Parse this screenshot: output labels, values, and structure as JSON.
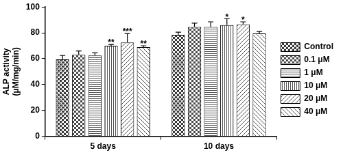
{
  "chart_data": {
    "type": "bar",
    "categories": [
      "5 days",
      "10 days"
    ],
    "ylabel": [
      "ALP activity",
      "(μM/mg/min)"
    ],
    "ylim": [
      0,
      100
    ],
    "yticks": [
      0,
      20,
      40,
      60,
      80,
      100
    ],
    "grid": false,
    "legend": "right",
    "series": [
      {
        "name": "Control",
        "color": "#3a3a3a",
        "values": [
          59.5,
          78.5
        ],
        "errors": [
          3,
          2
        ],
        "annotations": [
          null,
          null
        ]
      },
      {
        "name": "0.1 μM",
        "color": "#4a4a4a",
        "values": [
          63,
          84.5
        ],
        "errors": [
          3,
          3
        ],
        "annotations": [
          null,
          null
        ]
      },
      {
        "name": "1 μM",
        "color": "#555555",
        "values": [
          62.5,
          84.5
        ],
        "errors": [
          2,
          4
        ],
        "annotations": [
          null,
          null
        ]
      },
      {
        "name": "10 μM",
        "color": "#555555",
        "values": [
          70,
          86
        ],
        "errors": [
          1,
          5
        ],
        "annotations": [
          "**",
          "*"
        ]
      },
      {
        "name": "20 μM",
        "color": "#555555",
        "values": [
          72.5,
          86.5
        ],
        "errors": [
          7,
          2
        ],
        "annotations": [
          "***",
          "*"
        ]
      },
      {
        "name": "40 μM",
        "color": "#555555",
        "values": [
          69,
          79.5
        ],
        "errors": [
          1,
          1.5
        ],
        "annotations": [
          "**",
          null
        ]
      }
    ]
  }
}
